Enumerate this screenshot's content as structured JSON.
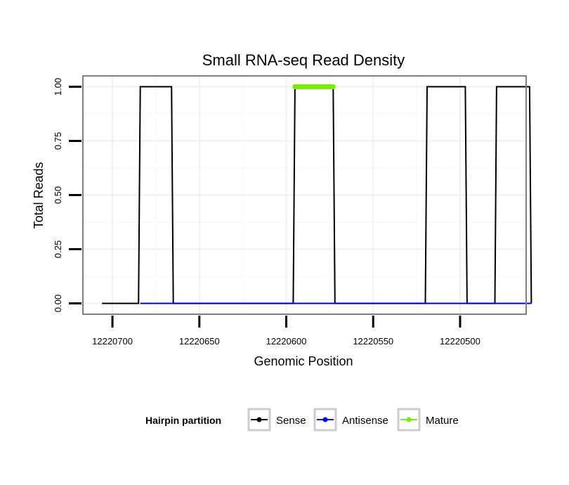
{
  "chart_data": {
    "type": "line",
    "title": "Small RNA-seq Read Density",
    "xlabel": "Genomic Position",
    "ylabel": "Total Reads",
    "x_reversed": true,
    "xlim": [
      12220717,
      12220462
    ],
    "ylim": [
      -0.05,
      1.05
    ],
    "x_ticks": [
      12220700,
      12220650,
      12220600,
      12220550,
      12220500
    ],
    "x_tick_labels": [
      "12220700",
      "12220650",
      "12220600",
      "12220550",
      "12220500"
    ],
    "y_ticks": [
      0,
      0.25,
      0.5,
      0.75,
      1
    ],
    "y_tick_labels": [
      "0.00",
      "0.25",
      "0.50",
      "0.75",
      "1.00"
    ],
    "grid": true,
    "series": [
      {
        "name": "Sense",
        "color": "#000000",
        "x": [
          12220706,
          12220685,
          12220684,
          12220666,
          12220665,
          12220596,
          12220595,
          12220573,
          12220572,
          12220520,
          12220519,
          12220497,
          12220496,
          12220480,
          12220479,
          12220460,
          12220459
        ],
        "y": [
          0,
          0,
          1,
          1,
          0,
          0,
          1,
          1,
          0,
          0,
          1,
          1,
          0,
          0,
          1,
          1,
          0
        ]
      },
      {
        "name": "Antisense",
        "color": "#0000ff",
        "x": [
          12220684,
          12220665,
          12220595,
          12220572,
          12220519,
          12220496,
          12220479,
          12220459
        ],
        "y": [
          0,
          0,
          0,
          0,
          0,
          0,
          0,
          0
        ]
      },
      {
        "name": "Mature",
        "color": "#77ee00",
        "x": [
          12220595,
          12220573
        ],
        "y": [
          1,
          1
        ]
      }
    ],
    "legend": {
      "title": "Hairpin partition",
      "position": "bottom",
      "entries": [
        "Sense",
        "Antisense",
        "Mature"
      ]
    }
  }
}
